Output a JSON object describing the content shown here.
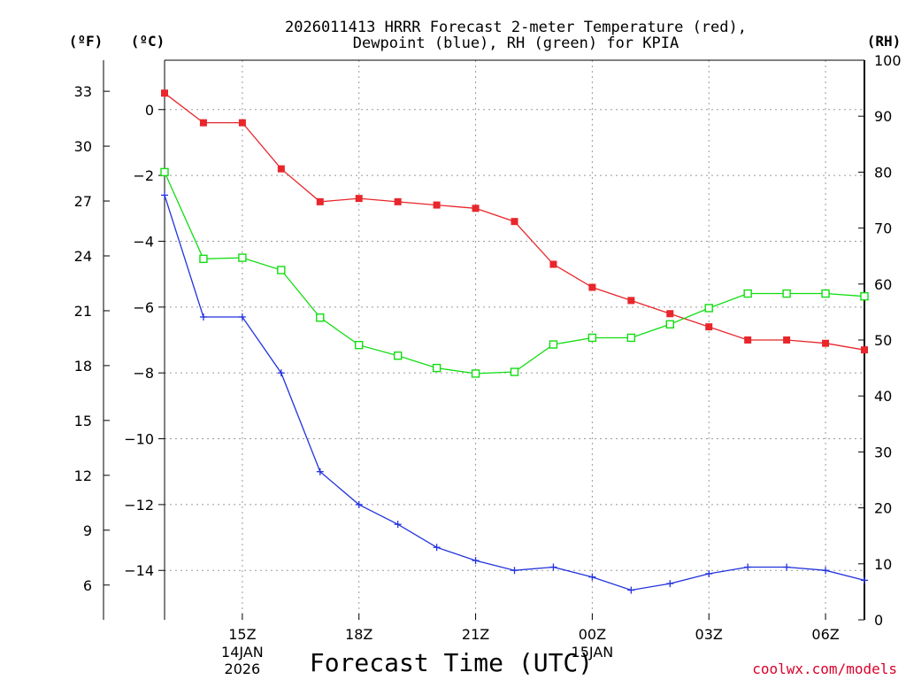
{
  "title_line1": "2026011413 HRRR Forecast 2-meter Temperature (red),",
  "title_line2": "Dewpoint (blue), RH (green) for KPIA",
  "units": {
    "fahrenheit": "(ºF)",
    "celsius": "(ºC)",
    "rh": "(RH)"
  },
  "credit": "coolwx.com/models",
  "colors": {
    "temperature": "#e8262b",
    "dewpoint": "#2233dd",
    "rh": "#11dd11"
  },
  "chart_data": {
    "type": "line",
    "title": "2026011413 HRRR Forecast 2-meter Temperature (red), Dewpoint (blue), RH (green) for KPIA",
    "xlabel": "Forecast Time (UTC)",
    "ylabel_left_outer": "(ºF)",
    "ylabel_left": "(ºC)",
    "ylabel_right": "(RH)",
    "x": [
      13,
      14,
      15,
      16,
      17,
      18,
      19,
      20,
      21,
      22,
      23,
      24,
      25,
      26,
      27,
      28,
      29,
      30,
      31
    ],
    "xlim": [
      13,
      31
    ],
    "ylim_c": [
      -15.5,
      1.5
    ],
    "ylim_rh": [
      0,
      100
    ],
    "c_ticks": [
      "0",
      "−2",
      "−4",
      "−6",
      "−8",
      "−10",
      "−12",
      "−14"
    ],
    "c_tick_values": [
      0,
      -2,
      -4,
      -6,
      -8,
      -10,
      -12,
      -14
    ],
    "f_ticks": [
      "33",
      "30",
      "27",
      "24",
      "21",
      "18",
      "15",
      "12",
      "9",
      "6"
    ],
    "f_tick_values": [
      33,
      30,
      27,
      24,
      21,
      18,
      15,
      12,
      9,
      6
    ],
    "rh_ticks": [
      "100",
      "90",
      "80",
      "70",
      "60",
      "50",
      "40",
      "30",
      "20",
      "10",
      "0"
    ],
    "rh_tick_values": [
      100,
      90,
      80,
      70,
      60,
      50,
      40,
      30,
      20,
      10,
      0
    ],
    "x_tick_positions": [
      15,
      18,
      21,
      24,
      27,
      30
    ],
    "x_ticks": [
      {
        "label": "15Z",
        "sub1": "14JAN",
        "sub2": "2026"
      },
      {
        "label": "18Z",
        "sub1": "",
        "sub2": ""
      },
      {
        "label": "21Z",
        "sub1": "",
        "sub2": ""
      },
      {
        "label": "00Z",
        "sub1": "15JAN",
        "sub2": ""
      },
      {
        "label": "03Z",
        "sub1": "",
        "sub2": ""
      },
      {
        "label": "06Z",
        "sub1": "",
        "sub2": ""
      }
    ],
    "series": [
      {
        "name": "Temperature (°C)",
        "key": "temperature",
        "marker": "square-filled",
        "values": [
          0.5,
          -0.4,
          -0.4,
          -1.8,
          -2.8,
          -2.7,
          -2.8,
          -2.9,
          -3.0,
          -3.4,
          -4.7,
          -5.4,
          -5.8,
          -6.2,
          -6.6,
          -7.0,
          -7.0,
          -7.1,
          -7.3
        ]
      },
      {
        "name": "Dewpoint (°C)",
        "key": "dewpoint",
        "marker": "plus",
        "values": [
          -2.6,
          -6.3,
          -6.3,
          -8.0,
          -11.0,
          -12.0,
          -12.6,
          -13.3,
          -13.7,
          -14.0,
          -13.9,
          -14.2,
          -14.6,
          -14.4,
          -14.1,
          -13.9,
          -13.9,
          -14.0,
          -14.3
        ]
      },
      {
        "name": "RH (%)",
        "key": "rh",
        "marker": "square-open",
        "values": [
          80,
          64.5,
          64.7,
          62.5,
          54,
          49.1,
          47.2,
          45,
          44,
          44.3,
          49.2,
          50.4,
          50.4,
          52.8,
          55.7,
          58.3,
          58.3,
          58.3,
          57.8
        ]
      }
    ]
  }
}
